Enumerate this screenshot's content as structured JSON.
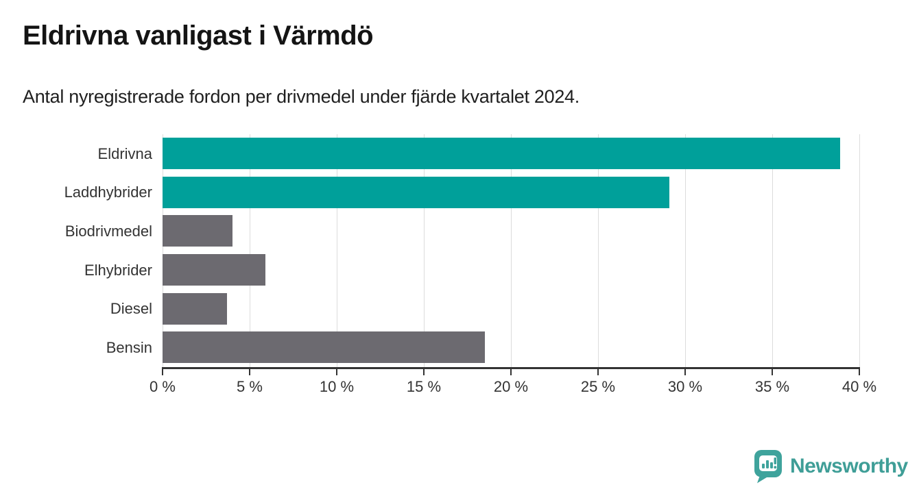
{
  "header": {
    "title": "Eldrivna vanligast i Värmdö",
    "subtitle": "Antal nyregistrerade fordon per drivmedel under fjärde kvartalet 2024."
  },
  "chart_data": {
    "type": "bar",
    "orientation": "horizontal",
    "title": "Eldrivna vanligast i Värmdö",
    "subtitle": "Antal nyregistrerade fordon per drivmedel under fjärde kvartalet 2024.",
    "categories": [
      "Eldrivna",
      "Laddhybrider",
      "Biodrivmedel",
      "Elhybrider",
      "Diesel",
      "Bensin"
    ],
    "values": [
      38.9,
      29.1,
      4.0,
      5.9,
      3.7,
      18.5
    ],
    "unit": "%",
    "bar_colors": [
      "#00a09a",
      "#00a09a",
      "#6c6a70",
      "#6c6a70",
      "#6c6a70",
      "#6c6a70"
    ],
    "xlim": [
      0,
      40
    ],
    "x_ticks": [
      0,
      5,
      10,
      15,
      20,
      25,
      30,
      35,
      40
    ],
    "x_tick_labels": [
      "0 %",
      "5 %",
      "10 %",
      "15 %",
      "20 %",
      "25 %",
      "30 %",
      "35 %",
      "40 %"
    ],
    "grid": "vertical gridlines every 5%",
    "legend": "none"
  },
  "branding": {
    "logo_text": "Newsworthy",
    "logo_text_color": "#3f9e97",
    "badge_color": "#3fa39c",
    "badge_icon": "mini-bar-chart-with-exclamation"
  },
  "colors": {
    "accent_teal": "#00a09a",
    "neutral_gray": "#6c6a70",
    "axis": "#333333",
    "gridline": "#dcdcdc",
    "background": "#ffffff"
  }
}
